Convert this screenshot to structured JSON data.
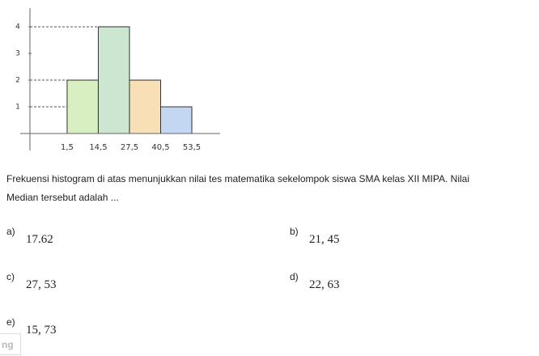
{
  "chart_data": {
    "type": "histogram",
    "bins": [
      1.5,
      14.5,
      27.5,
      40.5,
      53.5
    ],
    "values": [
      2,
      4,
      2,
      1
    ],
    "colors": [
      "#d8efc2",
      "#cde6d1",
      "#f8dfb6",
      "#c3d7f2"
    ],
    "xlim": [
      -14,
      65.3
    ],
    "ylim": [
      0,
      4.7
    ],
    "xticks": [
      {
        "value": 1.5,
        "label": "1,5"
      },
      {
        "value": 14.5,
        "label": "14,5"
      },
      {
        "value": 27.5,
        "label": "27,5"
      },
      {
        "value": 40.5,
        "label": "40,5"
      },
      {
        "value": 53.5,
        "label": "53,5"
      }
    ],
    "yticks": [
      1,
      2,
      3,
      4
    ]
  },
  "question": {
    "lines": [
      "Frekuensi histogram di atas menunjukkan nilai tes matematika sekelompok siswa SMA kelas XII MIPA. Nilai",
      "Median  tersebut adalah ..."
    ]
  },
  "options": [
    {
      "label": "a)",
      "text": "17.62"
    },
    {
      "label": "b)",
      "text": "21, 45"
    },
    {
      "label": "c)",
      "text": "27, 53"
    },
    {
      "label": "d)",
      "text": "22, 63"
    },
    {
      "label": "e)",
      "text": "15, 73"
    }
  ],
  "footer": {
    "fragment": "ng"
  }
}
